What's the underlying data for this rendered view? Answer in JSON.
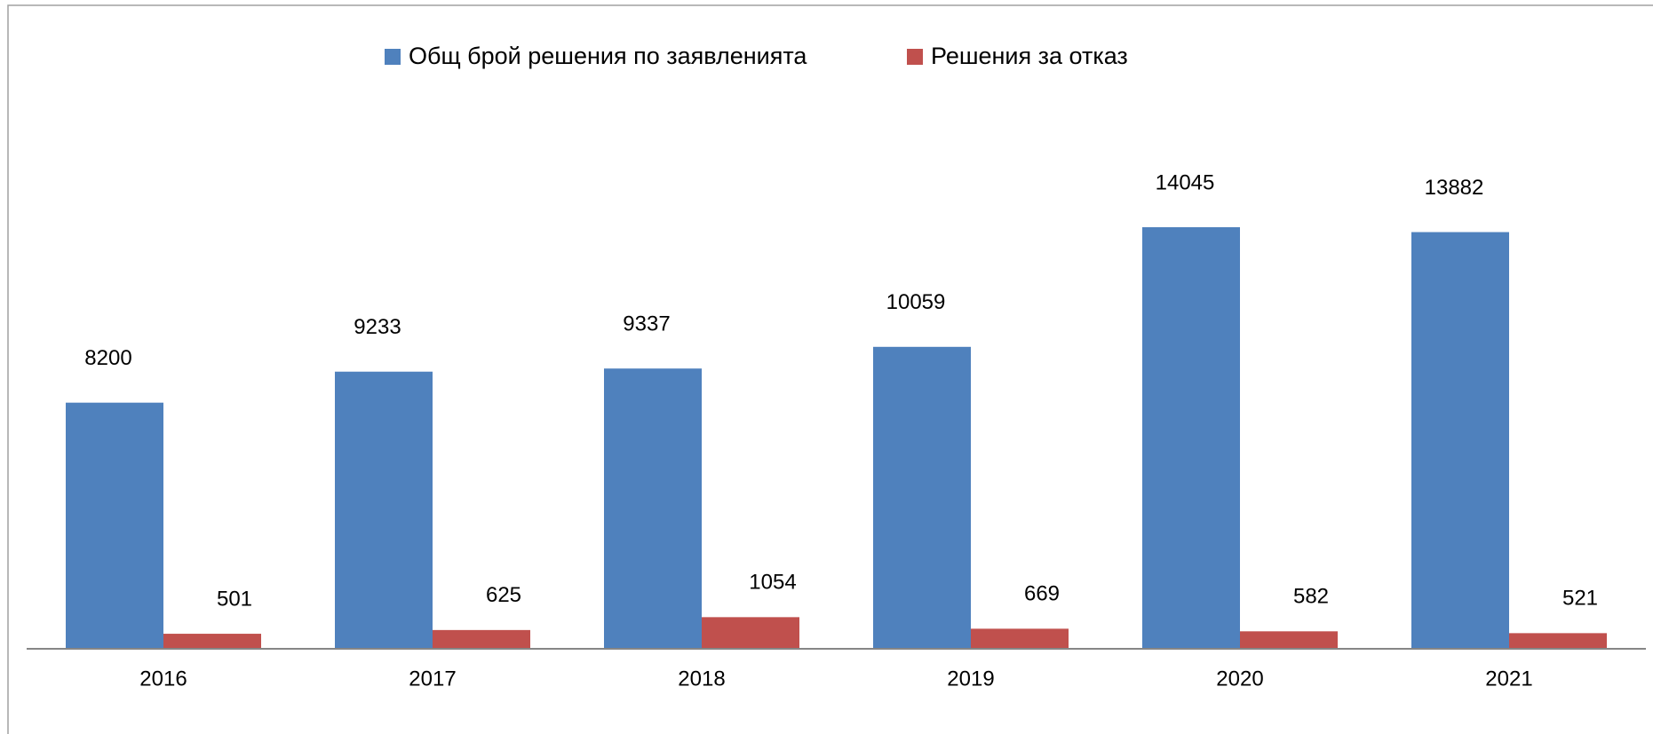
{
  "chart_data": {
    "type": "bar",
    "categories": [
      "2016",
      "2017",
      "2018",
      "2019",
      "2020",
      "2021"
    ],
    "series": [
      {
        "name": "Общ брой решения по заявленията",
        "color": "#4f81bd",
        "values": [
          8200,
          9233,
          9337,
          10059,
          14045,
          13882
        ]
      },
      {
        "name": "Решения за отказ",
        "color": "#c0504d",
        "values": [
          501,
          625,
          1054,
          669,
          582,
          521
        ]
      }
    ],
    "legend": "top",
    "grid": false
  }
}
